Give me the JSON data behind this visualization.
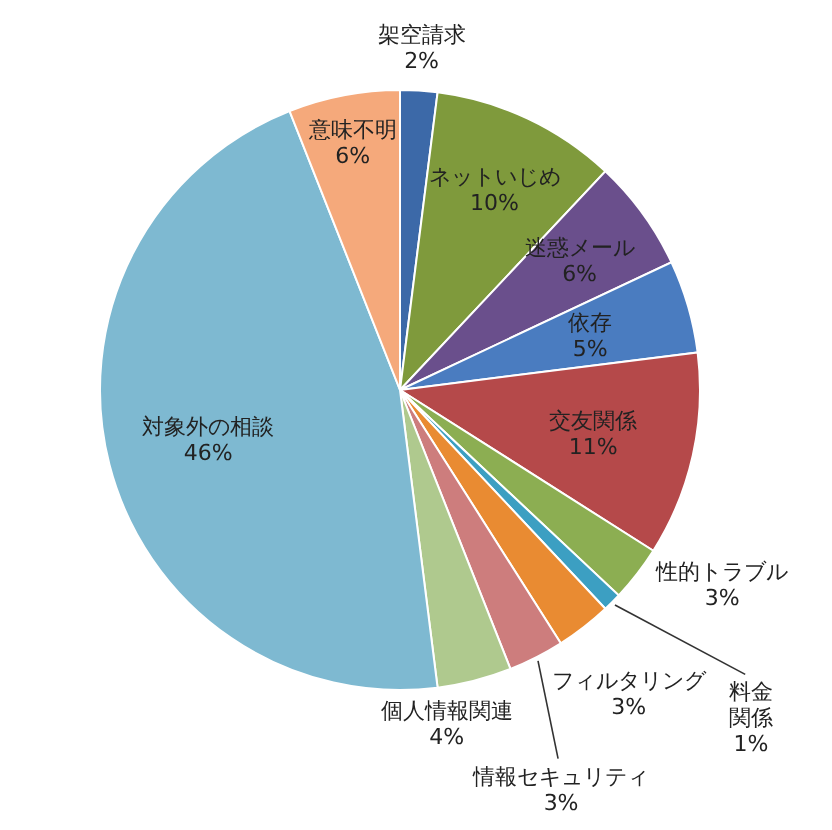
{
  "chart_data": {
    "type": "pie",
    "categories": [
      "架空請求",
      "ネットいじめ",
      "迷惑メール",
      "依存",
      "交友関係",
      "性的トラブル",
      "料金関係",
      "フィルタリング",
      "情報セキュリティ",
      "個人情報関連",
      "対象外の相談",
      "意味不明"
    ],
    "values": [
      2,
      10,
      6,
      5,
      11,
      3,
      1,
      3,
      3,
      4,
      46,
      6
    ],
    "value_labels": [
      "2%",
      "10%",
      "6%",
      "5%",
      "11%",
      "3%",
      "1%",
      "3%",
      "3%",
      "4%",
      "46%",
      "6%"
    ],
    "colors": [
      "#3c69a8",
      "#7f9a3c",
      "#6a4f8c",
      "#4a7cc0",
      "#b5494a",
      "#8cae52",
      "#3c9fc2",
      "#e98b32",
      "#cd7d7d",
      "#afc98e",
      "#7eb9d1",
      "#f5a97b"
    ]
  }
}
